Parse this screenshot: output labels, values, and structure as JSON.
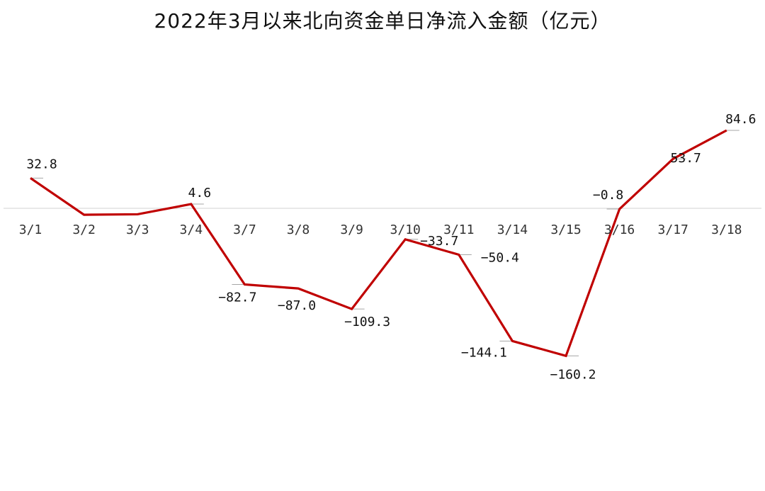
{
  "chart_data": {
    "type": "line",
    "title": "2022年3月以来北向资金单日净流入金额（亿元）",
    "categories": [
      "3/1",
      "3/2",
      "3/3",
      "3/4",
      "3/7",
      "3/8",
      "3/9",
      "3/10",
      "3/11",
      "3/14",
      "3/15",
      "3/16",
      "3/17",
      "3/18"
    ],
    "values": [
      32.8,
      -7.0,
      -6.5,
      4.6,
      -82.7,
      -87.0,
      -109.3,
      -33.7,
      -50.4,
      -144.1,
      -160.2,
      -0.8,
      53.7,
      84.6
    ],
    "data_labels": [
      "32.8",
      "",
      "",
      "4.6",
      "−82.7",
      "−87.0",
      "−109.3",
      "−33.7",
      "−50.4",
      "−144.1",
      "−160.2",
      "−0.8",
      "53.7",
      "84.6"
    ],
    "xlabel": "",
    "ylabel": "",
    "ylim": [
      -160.2,
      84.6
    ],
    "grid": false,
    "line_color": "#c00000",
    "axis_color": "#d9d9d9",
    "leader_color": "#a6a6a6"
  }
}
